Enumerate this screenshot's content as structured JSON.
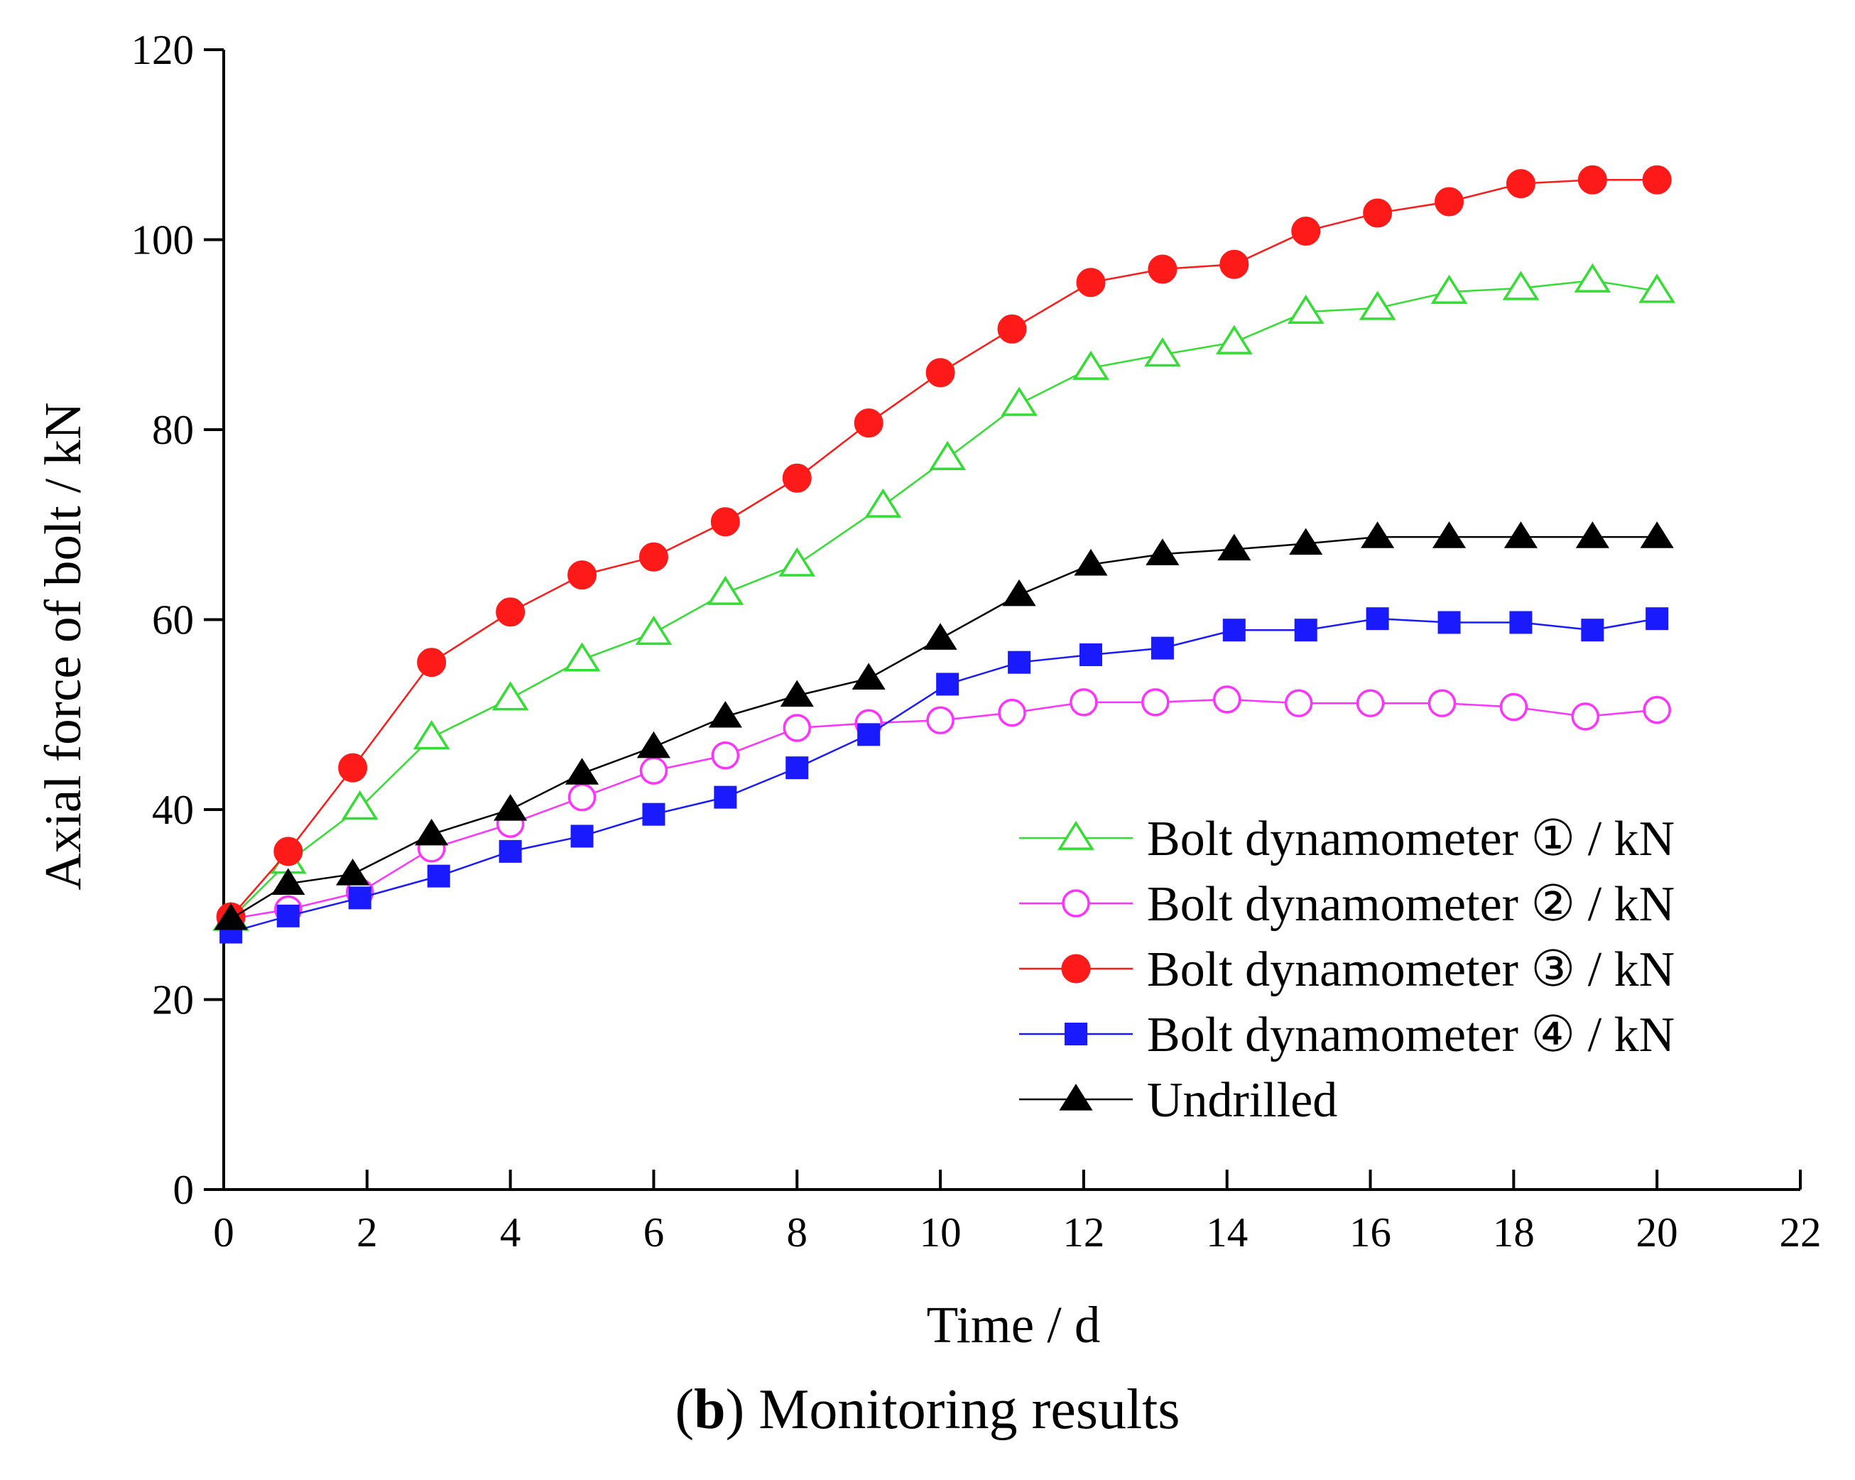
{
  "chart_data": {
    "type": "line",
    "xlabel": "Time / d",
    "ylabel": "Axial force of bolt / kN",
    "xlim": [
      0,
      22
    ],
    "ylim": [
      0,
      120
    ],
    "xticks": [
      0,
      2,
      4,
      6,
      8,
      10,
      12,
      14,
      16,
      18,
      20,
      22
    ],
    "yticks": [
      0,
      20,
      40,
      60,
      80,
      100,
      120
    ],
    "grid": false,
    "legend_position": "bottom-right",
    "series": [
      {
        "name": "Bolt dynamometer ① / kN",
        "color": "#33dd33",
        "marker": "triangle-open",
        "x": [
          0.1,
          0.9,
          1.9,
          2.9,
          4.0,
          5.0,
          6.0,
          7.0,
          8.0,
          9.2,
          10.1,
          11.1,
          12.1,
          13.1,
          14.1,
          15.1,
          16.1,
          17.1,
          18.1,
          19.1,
          20.0
        ],
        "y": [
          28.5,
          34.5,
          40.2,
          47.6,
          51.7,
          55.8,
          58.6,
          62.8,
          65.8,
          72.0,
          77.0,
          82.7,
          86.5,
          87.9,
          89.2,
          92.4,
          92.8,
          94.5,
          94.9,
          95.7,
          94.6
        ]
      },
      {
        "name": "Bolt dynamometer ② / kN",
        "color": "#ff33ff",
        "marker": "circle-open",
        "x": [
          0.1,
          0.9,
          1.9,
          2.9,
          4.0,
          5.0,
          6.0,
          7.0,
          8.0,
          9.0,
          10.0,
          11.0,
          12.0,
          13.0,
          14.0,
          15.0,
          16.0,
          17.0,
          18.0,
          19.0,
          20.0
        ],
        "y": [
          28.5,
          29.5,
          31.3,
          35.9,
          38.5,
          41.3,
          44.1,
          45.7,
          48.6,
          49.1,
          49.4,
          50.2,
          51.3,
          51.3,
          51.6,
          51.2,
          51.2,
          51.2,
          50.8,
          49.8,
          50.5
        ]
      },
      {
        "name": "Bolt dynamometer ③ / kN",
        "color": "#ff1a1a",
        "marker": "circle-filled",
        "x": [
          0.1,
          0.9,
          1.8,
          2.9,
          4.0,
          5.0,
          6.0,
          7.0,
          8.0,
          9.0,
          10.0,
          11.0,
          12.1,
          13.1,
          14.1,
          15.1,
          16.1,
          17.1,
          18.1,
          19.1,
          20.0
        ],
        "y": [
          28.7,
          35.6,
          44.4,
          55.5,
          60.8,
          64.7,
          66.6,
          70.3,
          74.9,
          80.7,
          86.0,
          90.6,
          95.5,
          96.9,
          97.4,
          100.9,
          102.8,
          104.0,
          105.9,
          106.3,
          106.3
        ]
      },
      {
        "name": "Bolt dynamometer ④ / kN",
        "color": "#1a1aff",
        "marker": "square-filled",
        "x": [
          0.1,
          0.9,
          1.9,
          3.0,
          4.0,
          5.0,
          6.0,
          7.0,
          8.0,
          9.0,
          10.1,
          11.1,
          12.1,
          13.1,
          14.1,
          15.1,
          16.1,
          17.1,
          18.1,
          19.1,
          20.0
        ],
        "y": [
          27.1,
          28.8,
          30.7,
          33.0,
          35.6,
          37.2,
          39.5,
          41.3,
          44.4,
          47.9,
          53.2,
          55.5,
          56.3,
          57.0,
          58.9,
          58.9,
          60.1,
          59.7,
          59.7,
          58.9,
          60.1
        ]
      },
      {
        "name": "Undrilled",
        "color": "#000000",
        "marker": "triangle-filled",
        "x": [
          0.1,
          0.9,
          1.8,
          2.9,
          4.0,
          5.0,
          6.0,
          7.0,
          8.0,
          9.0,
          10.0,
          11.1,
          12.1,
          13.1,
          14.1,
          15.1,
          16.1,
          17.1,
          18.1,
          19.1,
          20.0
        ],
        "y": [
          28.5,
          32.2,
          33.2,
          37.4,
          40.0,
          43.8,
          46.6,
          49.8,
          52.0,
          53.8,
          58.0,
          62.6,
          65.8,
          66.9,
          67.4,
          68.0,
          68.7,
          68.7,
          68.7,
          68.7,
          68.7
        ]
      }
    ]
  },
  "caption": {
    "bold": "b",
    "text": "Monitoring results"
  }
}
